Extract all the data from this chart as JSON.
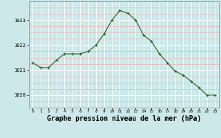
{
  "x": [
    0,
    1,
    2,
    3,
    4,
    5,
    6,
    7,
    8,
    9,
    10,
    11,
    12,
    13,
    14,
    15,
    16,
    17,
    18,
    19,
    20,
    21,
    22,
    23
  ],
  "y": [
    1021.3,
    1021.1,
    1021.1,
    1021.4,
    1021.65,
    1021.65,
    1021.65,
    1021.75,
    1022.0,
    1022.45,
    1023.0,
    1023.38,
    1023.28,
    1023.0,
    1022.4,
    1022.15,
    1021.65,
    1021.3,
    1020.95,
    1020.8,
    1020.55,
    1020.3,
    1020.0,
    1020.0
  ],
  "line_color": "#2d6a2d",
  "marker": "+",
  "bg_color": "#cce8e8",
  "grid_white": "#ffffff",
  "grid_pink": "#e8b4b4",
  "xlabel": "Graphe pression niveau de la mer (hPa)",
  "yticks": [
    1020,
    1021,
    1022,
    1023
  ],
  "xticks": [
    0,
    1,
    2,
    3,
    4,
    5,
    6,
    7,
    8,
    9,
    10,
    11,
    12,
    13,
    14,
    15,
    16,
    17,
    18,
    19,
    20,
    21,
    22,
    23
  ],
  "ylim": [
    1019.5,
    1023.75
  ],
  "xlim": [
    -0.5,
    23.5
  ]
}
